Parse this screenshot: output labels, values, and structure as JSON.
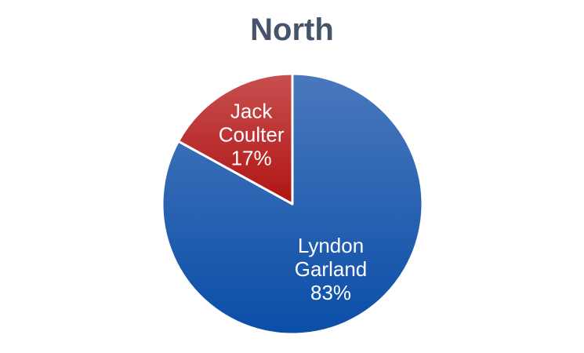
{
  "chart_data": {
    "type": "pie",
    "title": "North",
    "slices": [
      {
        "name": "Lyndon Garland",
        "name_lines": [
          "Lyndon",
          "Garland"
        ],
        "value": 83,
        "label": "83%",
        "color": "#0A4EA8",
        "color_light": "#4A78BC"
      },
      {
        "name": "Jack Coulter",
        "name_lines": [
          "Jack",
          "Coulter"
        ],
        "value": 17,
        "label": "17%",
        "color": "#B01414",
        "color_light": "#C85050"
      }
    ],
    "start_angle_deg": 0,
    "direction": "clockwise",
    "legend": "none",
    "data_labels": "inside"
  }
}
